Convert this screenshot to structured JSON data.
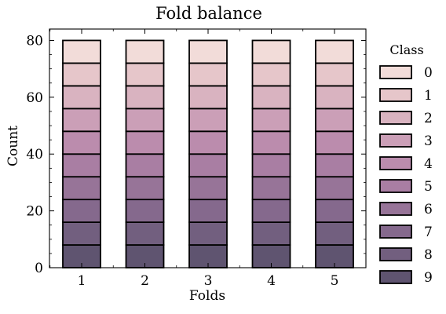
{
  "chart_data": {
    "type": "bar",
    "stacked": true,
    "title": "Fold balance",
    "xlabel": "Folds",
    "ylabel": "Count",
    "categories": [
      "1",
      "2",
      "3",
      "4",
      "5"
    ],
    "ylim": [
      0,
      84
    ],
    "yticks": [
      0,
      20,
      40,
      60,
      80
    ],
    "legend": {
      "title": "Class",
      "placement": "right"
    },
    "series": [
      {
        "name": "9",
        "values": [
          8,
          8,
          8,
          8,
          8
        ],
        "color": "#5f5470"
      },
      {
        "name": "8",
        "values": [
          8,
          8,
          8,
          8,
          8
        ],
        "color": "#725f7f"
      },
      {
        "name": "7",
        "values": [
          8,
          8,
          8,
          8,
          8
        ],
        "color": "#85698d"
      },
      {
        "name": "6",
        "values": [
          8,
          8,
          8,
          8,
          8
        ],
        "color": "#977498"
      },
      {
        "name": "5",
        "values": [
          8,
          8,
          8,
          8,
          8
        ],
        "color": "#a97ea3"
      },
      {
        "name": "4",
        "values": [
          8,
          8,
          8,
          8,
          8
        ],
        "color": "#bb8cad"
      },
      {
        "name": "3",
        "values": [
          8,
          8,
          8,
          8,
          8
        ],
        "color": "#cb9fb7"
      },
      {
        "name": "2",
        "values": [
          8,
          8,
          8,
          8,
          8
        ],
        "color": "#d9b3c0"
      },
      {
        "name": "1",
        "values": [
          8,
          8,
          8,
          8,
          8
        ],
        "color": "#e6c6ca"
      },
      {
        "name": "0",
        "values": [
          8,
          8,
          8,
          8,
          8
        ],
        "color": "#f2dcd9"
      }
    ]
  }
}
